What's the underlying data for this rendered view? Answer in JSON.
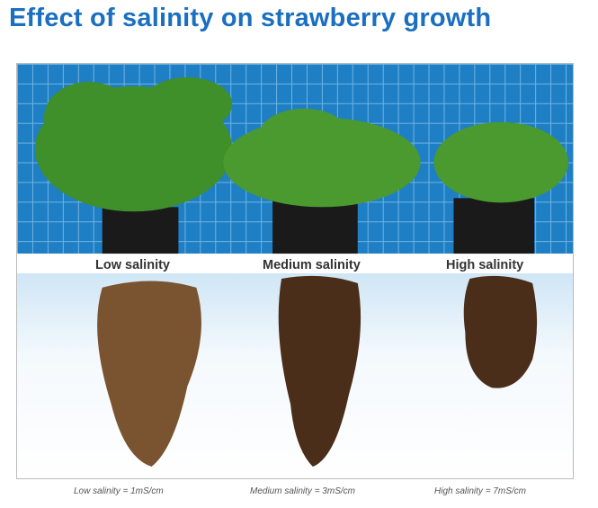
{
  "title": "Effect of salinity on strawberry growth",
  "photo_labels": [
    "Low salinity",
    "Medium salinity",
    "High salinity"
  ],
  "captions": [
    "Low salinity = 1mS/cm",
    "Medium salinity = 3mS/cm",
    "High salinity = 7mS/cm"
  ],
  "colors": {
    "title": "#1a6fc0",
    "fence": "#1f7fc4",
    "root": "#5a3a22"
  }
}
